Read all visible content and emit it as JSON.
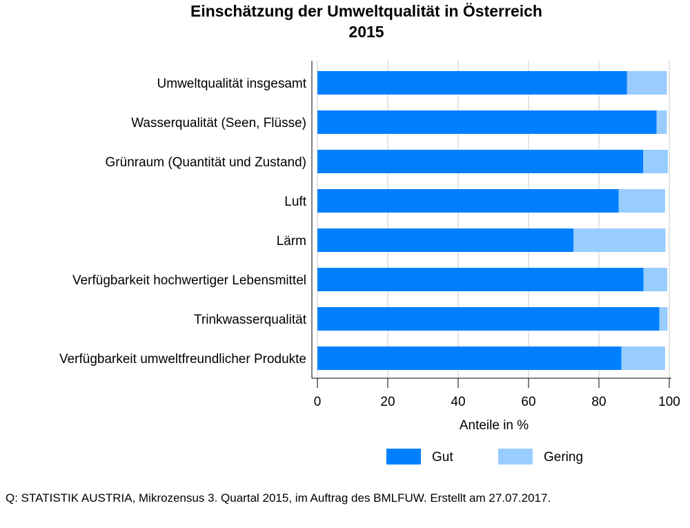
{
  "chart_data": {
    "type": "bar",
    "orientation": "horizontal",
    "stacked": true,
    "title": "Einschätzung der Umweltqualität in Österreich",
    "subtitle": "2015",
    "categories": [
      "Umweltqualität insgesamt",
      "Wasserqualität (Seen, Flüsse)",
      "Grünraum (Quantität und Zustand)",
      "Luft",
      "Lärm",
      "Verfügbarkeit hochwertiger Lebensmittel",
      "Trinkwasserqualität",
      "Verfügbarkeit umweltfreundlicher Produkte"
    ],
    "series": [
      {
        "name": "Gut",
        "color": "#0080ff",
        "values": [
          88.0,
          96.4,
          92.6,
          85.6,
          72.8,
          92.7,
          97.2,
          86.4
        ]
      },
      {
        "name": "Gering",
        "color": "#99ccff",
        "values": [
          11.3,
          2.9,
          7.0,
          13.2,
          26.1,
          6.7,
          2.3,
          12.4
        ]
      }
    ],
    "xlabel": "Anteile in %",
    "ylabel": "",
    "xlim": [
      0,
      100
    ],
    "xticks": [
      "0",
      "20",
      "40",
      "60",
      "80",
      "100"
    ],
    "grid": true,
    "legend": "bottom"
  },
  "source": "Q: STATISTIK AUSTRIA, Mikrozensus 3. Quartal 2015, im Auftrag des BMLFUW. Erstellt am 27.07.2017."
}
